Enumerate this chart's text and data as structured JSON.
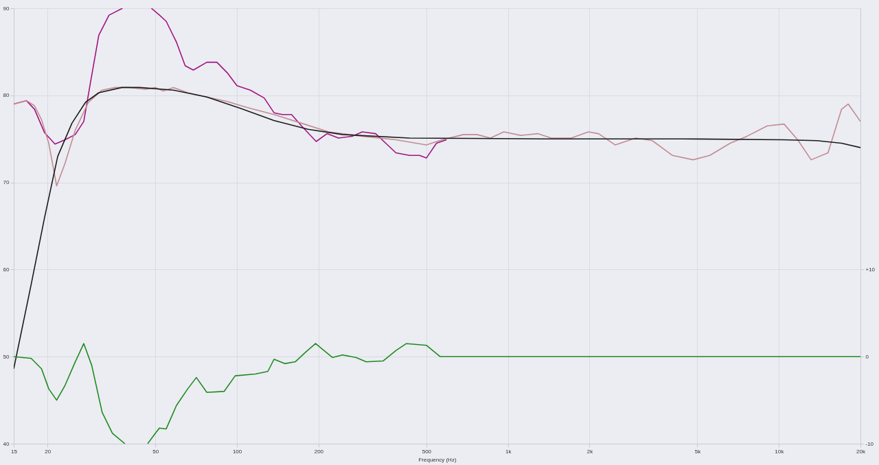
{
  "chart_data": {
    "type": "line",
    "xlabel": "Frequency (Hz)",
    "log": "x",
    "grid": true,
    "xlim": [
      15,
      20000
    ],
    "xticks": [
      15,
      20,
      50,
      100,
      200,
      500,
      {
        "value": 1000,
        "label": "1k"
      },
      {
        "value": 2000,
        "label": "2k"
      },
      {
        "value": 5000,
        "label": "5k"
      },
      {
        "value": 10000,
        "label": "10k"
      },
      {
        "value": 20000,
        "label": "20k"
      }
    ],
    "ylim": [
      40,
      90
    ],
    "yticks": [
      40,
      50,
      60,
      70,
      80,
      90
    ],
    "y2lim": [
      -10,
      40
    ],
    "y2ticks": [
      {
        "value": -10,
        "label": "-10"
      },
      0,
      {
        "value": 10,
        "label": "+10"
      }
    ],
    "series": [
      {
        "color": "#a3127f",
        "x": [
          15,
          16.7,
          17.9,
          19.5,
          21.3,
          23.2,
          25.3,
          27.2,
          28.8,
          30.9,
          33.7,
          37.8,
          42,
          48.3,
          51.8,
          54.8,
          59.8,
          64.4,
          69,
          77.4,
          84.3,
          92,
          100,
          112,
          126,
          137,
          147,
          159,
          173,
          196,
          215,
          237,
          266,
          290,
          325,
          354,
          386,
          433,
          472,
          500,
          545,
          593
        ],
        "values": [
          79.0,
          79.4,
          78.4,
          75.7,
          74.4,
          74.9,
          75.5,
          77.0,
          81.5,
          86.9,
          89.2,
          90,
          null,
          90,
          89.2,
          88.5,
          86.1,
          83.4,
          82.9,
          83.8,
          83.8,
          82.6,
          81.1,
          80.6,
          79.7,
          78.0,
          77.8,
          77.8,
          76.5,
          74.7,
          75.6,
          75.1,
          75.3,
          75.8,
          75.6,
          74.5,
          73.4,
          73.1,
          73.1,
          72.8,
          74.5,
          74.9
        ]
      },
      {
        "color": "#c48a93",
        "x": [
          15,
          16.7,
          17.9,
          19.0,
          20.2,
          21.6,
          23.2,
          25.3,
          28.3,
          31.8,
          35.5,
          39.9,
          46.1,
          50,
          53.4,
          58.3,
          65.8,
          77.4,
          92,
          109,
          137,
          173,
          218,
          290,
          386,
          500,
          572,
          686,
          768,
          861,
          966,
          1115,
          1288,
          1445,
          1713,
          1980,
          2160,
          2490,
          2960,
          3410,
          4050,
          4820,
          5560,
          6610,
          7620,
          9060,
          10450,
          11730,
          13150,
          15180,
          17030,
          18030,
          20000
        ],
        "values": [
          79.0,
          79.4,
          78.8,
          77.2,
          74.5,
          69.6,
          72.2,
          76.0,
          79.2,
          80.6,
          80.9,
          80.9,
          80.7,
          80.9,
          80.5,
          80.9,
          80.3,
          79.8,
          79.3,
          78.6,
          77.8,
          76.8,
          75.8,
          75.3,
          74.9,
          74.3,
          74.9,
          75.5,
          75.5,
          75.1,
          75.8,
          75.4,
          75.6,
          75.1,
          75.1,
          75.8,
          75.6,
          74.3,
          75.1,
          74.8,
          73.1,
          72.6,
          73.1,
          74.5,
          75.3,
          76.5,
          76.7,
          74.9,
          72.6,
          73.4,
          78.4,
          79.0,
          77.0
        ]
      },
      {
        "color": "#1a1a1a",
        "x": [
          15,
          17.4,
          19.5,
          21.8,
          24.6,
          27.6,
          30.9,
          37.6,
          43.7,
          58.3,
          77.4,
          103,
          137,
          183,
          245,
          433,
          1365,
          4360,
          10350,
          13800,
          17030,
          20000
        ],
        "values": [
          48.6,
          58.3,
          66.0,
          73.0,
          76.8,
          79.2,
          80.3,
          80.9,
          80.9,
          80.6,
          79.8,
          78.5,
          77.1,
          76.1,
          75.5,
          75.1,
          75.0,
          75.0,
          74.9,
          74.8,
          74.5,
          74.0
        ]
      },
      {
        "color": "#1e8a1e",
        "axis": "y2",
        "x": [
          15,
          17.4,
          19.0,
          20.2,
          21.6,
          23.2,
          25.3,
          27.2,
          29.1,
          31.8,
          34.7,
          38.6,
          42,
          46.8,
          50,
          51.7,
          54.8,
          59.8,
          65.8,
          70.8,
          77.4,
          89.6,
          98.5,
          117,
          130,
          137,
          150,
          164,
          179,
          195,
          225,
          245,
          275,
          300,
          346,
          386,
          422,
          500,
          562,
          20000
        ],
        "values": [
          0,
          -0.2,
          -1.4,
          -3.7,
          -5.0,
          -3.3,
          -0.6,
          1.5,
          -1.0,
          -6.4,
          -8.8,
          -10,
          null,
          -10,
          -8.8,
          -8.2,
          -8.3,
          -5.6,
          -3.7,
          -2.4,
          -4.1,
          -4.0,
          -2.2,
          -2.0,
          -1.7,
          -0.3,
          -0.8,
          -0.6,
          0.5,
          1.5,
          -0.1,
          0.2,
          -0.1,
          -0.6,
          -0.5,
          0.7,
          1.5,
          1.3,
          0,
          0
        ]
      }
    ]
  }
}
